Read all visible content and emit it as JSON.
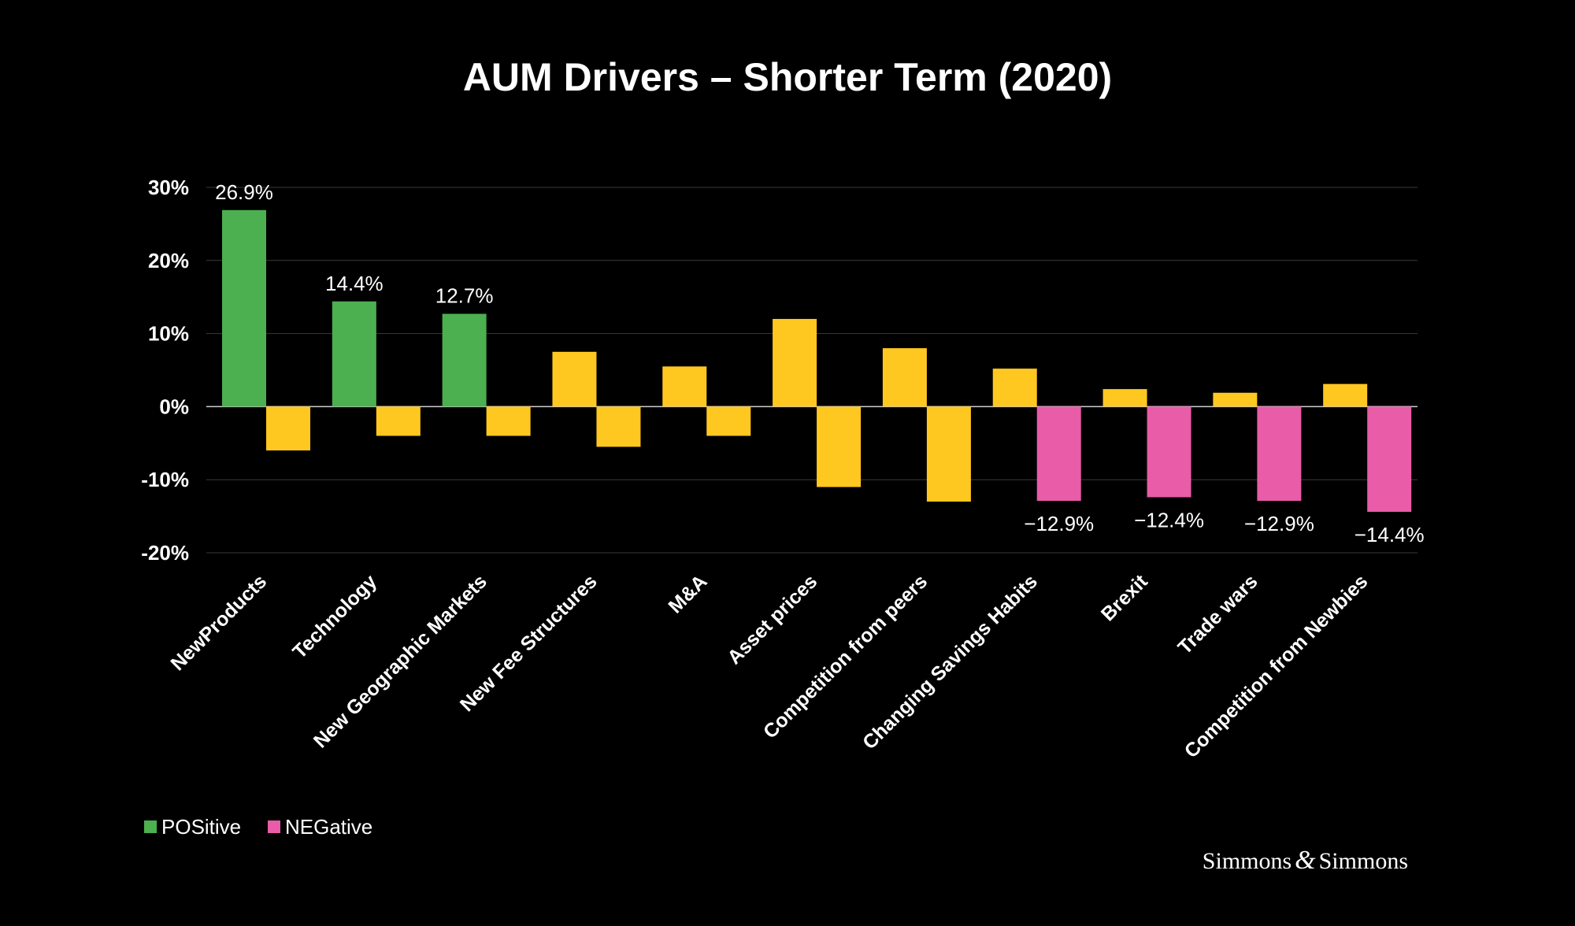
{
  "chart_data": {
    "type": "bar",
    "title": "AUM Drivers – Shorter Term (2020)",
    "xlabel": "",
    "ylabel": "",
    "ylim": [
      -20,
      30
    ],
    "yticks": [
      30,
      20,
      10,
      0,
      -10,
      -20
    ],
    "ytick_labels": [
      "30%",
      "20%",
      "10%",
      "0%",
      "-10%",
      "-20%"
    ],
    "grid": true,
    "categories": [
      "NewProducts",
      "Technology",
      "New Geographic Markets",
      "New Fee Structures",
      "M&A",
      "Asset prices",
      "Competition from peers",
      "Changing Savings Habits",
      "Brexit",
      "Trade wars",
      "Competition from Newbies"
    ],
    "series": [
      {
        "name": "POSitive",
        "values": [
          26.9,
          14.4,
          12.7,
          7.5,
          5.5,
          12.0,
          8.0,
          5.2,
          2.4,
          1.9,
          3.1
        ],
        "colors": [
          "#4caf50",
          "#4caf50",
          "#4caf50",
          "#ffc820",
          "#ffc820",
          "#ffc820",
          "#ffc820",
          "#ffc820",
          "#ffc820",
          "#ffc820",
          "#ffc820"
        ],
        "labels": [
          "26.9%",
          "14.4%",
          "12.7%",
          "",
          "",
          "",
          "",
          "",
          "",
          "",
          ""
        ]
      },
      {
        "name": "NEGative",
        "values": [
          -6.0,
          -4.0,
          -4.0,
          -5.5,
          -4.0,
          -11.0,
          -13.0,
          -12.9,
          -12.4,
          -12.9,
          -14.4
        ],
        "colors": [
          "#ffc820",
          "#ffc820",
          "#ffc820",
          "#ffc820",
          "#ffc820",
          "#ffc820",
          "#ffc820",
          "#e85ca8",
          "#e85ca8",
          "#e85ca8",
          "#e85ca8"
        ],
        "labels": [
          "",
          "",
          "",
          "",
          "",
          "",
          "",
          "−12.9%",
          "−12.4%",
          "−12.9%",
          "−14.4%"
        ]
      }
    ],
    "legend": {
      "position": "bottom-left",
      "items": [
        {
          "label": "POSitive",
          "color": "#4caf50"
        },
        {
          "label": "NEGative",
          "color": "#e85ca8"
        }
      ]
    }
  },
  "brand": {
    "left": "Simmons",
    "amp": "&",
    "right": "Simmons"
  }
}
